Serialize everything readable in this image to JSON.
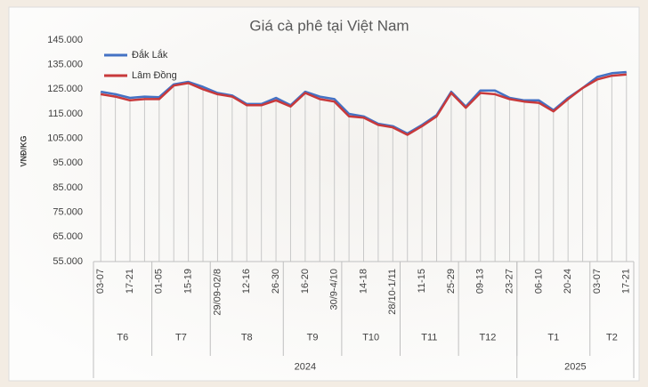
{
  "chart_data": {
    "type": "line",
    "title": "Giá cà phê tại Việt Nam",
    "y_label": "VNĐ/KG",
    "ylim": [
      55000,
      145000
    ],
    "yticks": [
      {
        "value": 55000,
        "label": "55.000"
      },
      {
        "value": 65000,
        "label": "65.000"
      },
      {
        "value": 75000,
        "label": "75.000"
      },
      {
        "value": 85000,
        "label": "85.000"
      },
      {
        "value": 95000,
        "label": "95.000"
      },
      {
        "value": 105000,
        "label": "105.000"
      },
      {
        "value": 115000,
        "label": "115.000"
      },
      {
        "value": 125000,
        "label": "125.000"
      },
      {
        "value": 135000,
        "label": "135.000"
      },
      {
        "value": 145000,
        "label": "145.000"
      }
    ],
    "years": [
      {
        "label": "2024",
        "months": [
          {
            "label": "T6",
            "categories": [
              "03-07",
              null,
              "17-21",
              null
            ]
          },
          {
            "label": "T7",
            "categories": [
              "01-05",
              null,
              "15-19",
              null
            ]
          },
          {
            "label": "T8",
            "categories": [
              "29/09-02/8",
              null,
              "12-16",
              null,
              "26-30"
            ]
          },
          {
            "label": "T9",
            "categories": [
              null,
              "16-20",
              null,
              "30/9-4/10"
            ]
          },
          {
            "label": "T10",
            "categories": [
              null,
              "14-18",
              null,
              "28/10-1/11"
            ]
          },
          {
            "label": "T11",
            "categories": [
              null,
              "11-15",
              null,
              "25-29"
            ]
          },
          {
            "label": "T12",
            "categories": [
              null,
              "09-13",
              null,
              "23-27"
            ]
          }
        ]
      },
      {
        "label": "2025",
        "months": [
          {
            "label": "T1",
            "categories": [
              null,
              "06-10",
              null,
              "20-24",
              null
            ]
          },
          {
            "label": "T2",
            "categories": [
              "03-07",
              null,
              "17-21"
            ]
          }
        ]
      }
    ],
    "series": [
      {
        "name": "Đắk Lắk",
        "color": "#4472c4",
        "values": [
          124000,
          123000,
          121500,
          122000,
          121800,
          127000,
          128000,
          126000,
          123500,
          122500,
          119000,
          119000,
          121500,
          118500,
          124000,
          122000,
          121000,
          115000,
          114000,
          111000,
          110000,
          107000,
          110500,
          114500,
          124000,
          118000,
          124500,
          124500,
          121500,
          120500,
          120500,
          116500,
          121500,
          125500,
          130000,
          131500,
          132000
        ]
      },
      {
        "name": "Lâm Đồng",
        "color": "#c8393b",
        "values": [
          123000,
          122000,
          120500,
          121000,
          121000,
          126500,
          127500,
          125000,
          123000,
          122000,
          118500,
          118500,
          120500,
          118000,
          123500,
          121000,
          120000,
          114000,
          113500,
          110500,
          109500,
          106500,
          110000,
          114000,
          123500,
          117500,
          123500,
          123000,
          121000,
          120000,
          119500,
          116000,
          121000,
          125500,
          129000,
          130500,
          131000
        ]
      }
    ],
    "legend": "upper left"
  }
}
